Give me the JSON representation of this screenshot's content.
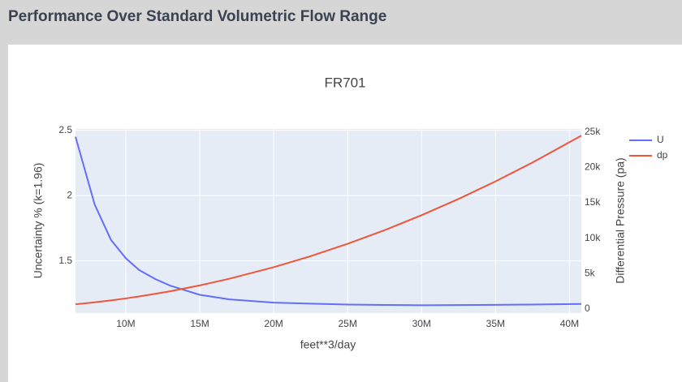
{
  "header": {
    "title": "Performance Over Standard Volumetric Flow Range"
  },
  "chart_data": {
    "type": "line",
    "title": "FR701",
    "x_label": "feet**3/day",
    "y_label": "Uncertainty % (k=1.96)",
    "y2_label": "Differential Pressure (pa)",
    "x": [
      6600000,
      7900000,
      9000000,
      10000000,
      10900000,
      12000000,
      13000000,
      15000000,
      17000000,
      20000000,
      22500000,
      25000000,
      27500000,
      30000000,
      32500000,
      35000000,
      37500000,
      40800000
    ],
    "series": [
      {
        "name": "U",
        "color": "#636efa",
        "values": [
          2.45,
          1.93,
          1.66,
          1.52,
          1.43,
          1.36,
          1.31,
          1.24,
          1.205,
          1.18,
          1.172,
          1.165,
          1.162,
          1.16,
          1.161,
          1.163,
          1.165,
          1.17
        ]
      },
      {
        "name": "dp",
        "color": "#ef553b",
        "axis": "y2",
        "values": [
          641,
          919,
          1192,
          1472,
          1749,
          2120,
          2488,
          3312,
          4254,
          5888,
          7452,
          9200,
          11132,
          13248,
          15548,
          18032,
          20700,
          24503
        ]
      }
    ],
    "xlim": [
      6600000,
      40800000
    ],
    "xticks": [
      {
        "value": 10000000,
        "label": "10M"
      },
      {
        "value": 15000000,
        "label": "15M"
      },
      {
        "value": 20000000,
        "label": "20M"
      },
      {
        "value": 25000000,
        "label": "25M"
      },
      {
        "value": 30000000,
        "label": "30M"
      },
      {
        "value": 35000000,
        "label": "35M"
      },
      {
        "value": 40000000,
        "label": "40M"
      }
    ],
    "ylim": [
      1.1,
      2.51
    ],
    "yticks": [
      1.5,
      2,
      2.5
    ],
    "y2lim": [
      -600,
      25450
    ],
    "y2ticks": [
      0,
      {
        "value": 5000,
        "label": "5k"
      },
      {
        "value": 10000,
        "label": "10k"
      },
      {
        "value": 15000,
        "label": "15k"
      },
      {
        "value": 20000,
        "label": "20k"
      },
      {
        "value": 25000,
        "label": "25k"
      }
    ],
    "grid": true,
    "legend": "top-right"
  }
}
